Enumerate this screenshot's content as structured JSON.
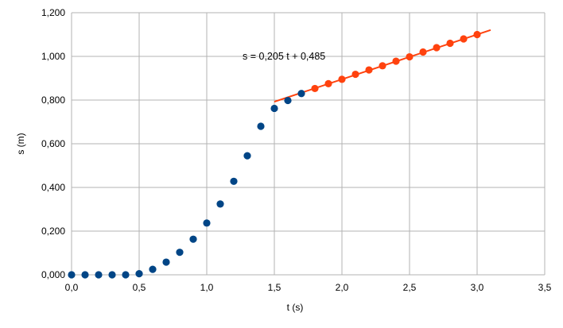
{
  "chart_data": {
    "type": "scatter",
    "xlabel": "t (s)",
    "ylabel": "s (m)",
    "xlim": [
      0,
      3.5
    ],
    "ylim": [
      0,
      1.2
    ],
    "x_ticks": [
      "0,0",
      "0,5",
      "1,0",
      "1,5",
      "2,0",
      "2,5",
      "3,0",
      "3,5"
    ],
    "y_ticks": [
      "0,000",
      "0,200",
      "0,400",
      "0,600",
      "0,800",
      "1,000",
      "1,200"
    ],
    "x_tick_values": [
      0,
      0.5,
      1.0,
      1.5,
      2.0,
      2.5,
      3.0,
      3.5
    ],
    "y_tick_values": [
      0,
      0.2,
      0.4,
      0.6,
      0.8,
      1.0,
      1.2
    ],
    "grid": true,
    "legend": "none",
    "series": [
      {
        "color": "#004586",
        "x": [
          0.0,
          0.1,
          0.2,
          0.3,
          0.4,
          0.5,
          0.6,
          0.7,
          0.8,
          0.9,
          1.0,
          1.1,
          1.2,
          1.3,
          1.4,
          1.5,
          1.6,
          1.7
        ],
        "y": [
          0.0,
          0.0,
          0.0,
          0.0,
          0.0,
          0.005,
          0.025,
          0.058,
          0.103,
          0.163,
          0.237,
          0.324,
          0.428,
          0.545,
          0.68,
          0.762,
          0.798,
          0.83
        ]
      },
      {
        "color": "#ff420e",
        "x": [
          1.8,
          1.9,
          2.0,
          2.1,
          2.2,
          2.3,
          2.4,
          2.5,
          2.6,
          2.7,
          2.8,
          2.9,
          3.0
        ],
        "y": [
          0.853,
          0.875,
          0.895,
          0.918,
          0.938,
          0.957,
          0.978,
          0.998,
          1.02,
          1.04,
          1.06,
          1.08,
          1.1
        ]
      }
    ],
    "trendline": {
      "color": "#ff420e",
      "slope": 0.205,
      "intercept": 0.485,
      "x_range": [
        1.5,
        3.1
      ],
      "label": "s = 0,205 t + 0,485"
    }
  }
}
